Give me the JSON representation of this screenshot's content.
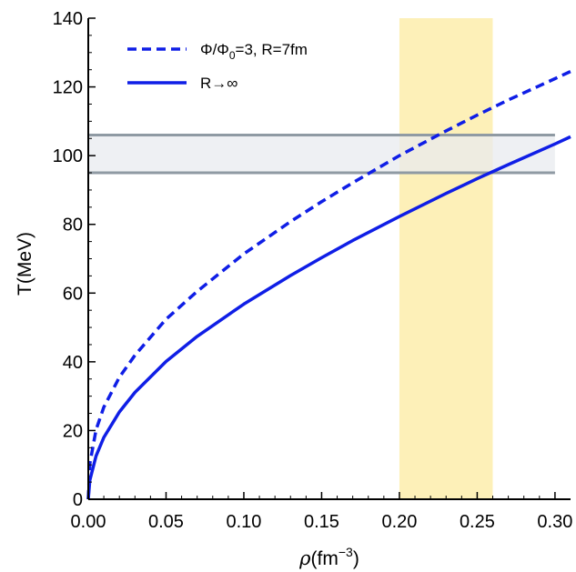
{
  "chart_data": {
    "type": "line",
    "xlabel": "ρ(fm",
    "xlabel_sup": "−3",
    "xlabel_close": ")",
    "ylabel": "T(MeV)",
    "xlim": [
      0,
      0.31
    ],
    "ylim": [
      0,
      140
    ],
    "x_ticks": [
      {
        "value": 0.0,
        "label": "0.00"
      },
      {
        "value": 0.05,
        "label": "0.05"
      },
      {
        "value": 0.1,
        "label": "0.10"
      },
      {
        "value": 0.15,
        "label": "0.15"
      },
      {
        "value": 0.2,
        "label": "0.20"
      },
      {
        "value": 0.25,
        "label": "0.25"
      },
      {
        "value": 0.3,
        "label": "0.30"
      }
    ],
    "y_ticks": [
      {
        "value": 0,
        "label": "0"
      },
      {
        "value": 20,
        "label": "20"
      },
      {
        "value": 40,
        "label": "40"
      },
      {
        "value": 60,
        "label": "60"
      },
      {
        "value": 80,
        "label": "80"
      },
      {
        "value": 100,
        "label": "100"
      },
      {
        "value": 120,
        "label": "120"
      },
      {
        "value": 140,
        "label": "140"
      }
    ],
    "bands": {
      "vertical": {
        "x_range": [
          0.2,
          0.26
        ],
        "color": "#fdf0b8"
      },
      "horizontal": {
        "y_range": [
          95,
          106
        ],
        "x_extent": [
          0,
          0.3
        ],
        "fill": "#e8ebef",
        "edge": "#8f9aa3"
      }
    },
    "series": [
      {
        "name": "Φ/Φ0=3, R=7fm",
        "name_parts": {
          "a": "Φ/Φ",
          "sub": "0",
          "b": "=3, R=7fm"
        },
        "style": "dashed",
        "color": "#0f1ee6",
        "x": [
          0.0,
          0.001,
          0.005,
          0.01,
          0.02,
          0.03,
          0.05,
          0.07,
          0.1,
          0.13,
          0.15,
          0.17,
          0.2,
          0.23,
          0.25,
          0.27,
          0.3,
          0.31
        ],
        "y": [
          0,
          10.3,
          20.2,
          26.8,
          35.5,
          41.9,
          52.4,
          60.5,
          71.4,
          80.8,
          86.6,
          92.1,
          100.0,
          107.2,
          111.8,
          116.2,
          122.4,
          124.5
        ]
      },
      {
        "name": "R→∞",
        "style": "solid",
        "color": "#0f1ee6",
        "x": [
          0.0,
          0.001,
          0.005,
          0.01,
          0.02,
          0.03,
          0.05,
          0.07,
          0.1,
          0.13,
          0.15,
          0.17,
          0.2,
          0.23,
          0.25,
          0.27,
          0.3,
          0.31
        ],
        "y": [
          0,
          5.5,
          12.6,
          18.0,
          25.4,
          31.1,
          40.1,
          47.4,
          56.8,
          65.1,
          70.3,
          75.3,
          82.3,
          89.0,
          93.3,
          97.4,
          103.4,
          105.5
        ]
      }
    ],
    "legend_position": "top-left"
  }
}
